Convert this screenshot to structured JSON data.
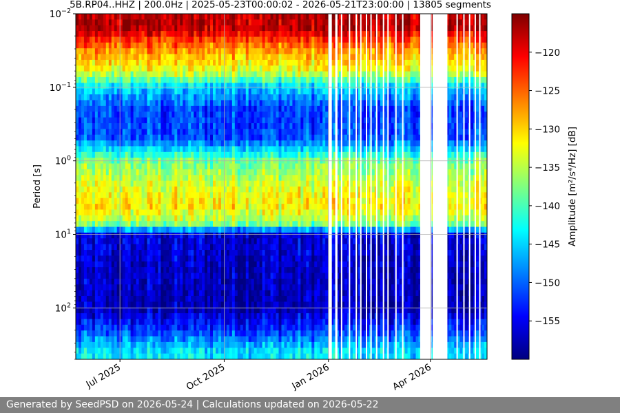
{
  "chart_data": {
    "type": "heatmap",
    "title": "5B.RP04..HHZ | 200.0Hz | 2025-05-23T00:00:02 - 2026-05-21T23:00:00 | 13805 segments",
    "ylabel": "Period [s]",
    "xlabel": "",
    "x_range": [
      "2025-05-23",
      "2026-05-21"
    ],
    "y_scale": "log",
    "y_inverted": true,
    "y_range": [
      0.01,
      500
    ],
    "y_ticks": [
      {
        "value": 0.01,
        "base": "10",
        "exp": "−2"
      },
      {
        "value": 0.1,
        "base": "10",
        "exp": "−1"
      },
      {
        "value": 1,
        "base": "10",
        "exp": "0"
      },
      {
        "value": 10,
        "base": "10",
        "exp": "1"
      },
      {
        "value": 100,
        "base": "10",
        "exp": "2"
      }
    ],
    "x_ticks": [
      {
        "date": "2025-07-01",
        "label": "Jul 2025"
      },
      {
        "date": "2025-10-01",
        "label": "Oct 2025"
      },
      {
        "date": "2026-01-01",
        "label": "Jan 2026"
      },
      {
        "date": "2026-04-01",
        "label": "Apr 2026"
      }
    ],
    "grid": true,
    "colormap": "jet",
    "colorbar": {
      "label": "Amplitude [m²/s⁴/Hz] [dB]",
      "range": [
        -160,
        -115
      ],
      "ticks": [
        -120,
        -125,
        -130,
        -135,
        -140,
        -145,
        -150,
        -155
      ]
    },
    "data_gaps": [
      [
        "2026-01-01",
        "2026-01-04"
      ],
      [
        "2026-01-07",
        "2026-01-09"
      ],
      [
        "2026-01-12",
        "2026-01-13"
      ],
      [
        "2026-01-19",
        "2026-01-20"
      ],
      [
        "2026-01-25",
        "2026-01-26"
      ],
      [
        "2026-01-29",
        "2026-01-30"
      ],
      [
        "2026-02-03",
        "2026-02-04"
      ],
      [
        "2026-02-07",
        "2026-02-08"
      ],
      [
        "2026-02-12",
        "2026-02-13"
      ],
      [
        "2026-02-18",
        "2026-02-19"
      ],
      [
        "2026-02-22",
        "2026-02-23"
      ],
      [
        "2026-03-01",
        "2026-03-02"
      ],
      [
        "2026-03-07",
        "2026-03-08"
      ],
      [
        "2026-03-23",
        "2026-04-02"
      ],
      [
        "2026-04-03",
        "2026-04-16"
      ],
      [
        "2026-04-24",
        "2026-04-25"
      ],
      [
        "2026-04-30",
        "2026-05-01"
      ],
      [
        "2026-05-05",
        "2026-05-06"
      ],
      [
        "2026-05-10",
        "2026-05-11"
      ],
      [
        "2026-05-14",
        "2026-05-15"
      ]
    ],
    "psd_profile_db": [
      {
        "period": 0.01,
        "db": -118
      },
      {
        "period": 0.015,
        "db": -117
      },
      {
        "period": 0.03,
        "db": -127
      },
      {
        "period": 0.06,
        "db": -133
      },
      {
        "period": 0.1,
        "db": -145
      },
      {
        "period": 0.2,
        "db": -152
      },
      {
        "period": 0.5,
        "db": -151
      },
      {
        "period": 1,
        "db": -138
      },
      {
        "period": 2,
        "db": -134
      },
      {
        "period": 4,
        "db": -131
      },
      {
        "period": 7,
        "db": -136
      },
      {
        "period": 10,
        "db": -156
      },
      {
        "period": 100,
        "db": -158
      },
      {
        "period": 200,
        "db": -152
      },
      {
        "period": 400,
        "db": -144
      }
    ]
  },
  "footer": {
    "text": "Generated by SeedPSD on 2026-05-24 | Calculations updated on 2026-05-22"
  }
}
